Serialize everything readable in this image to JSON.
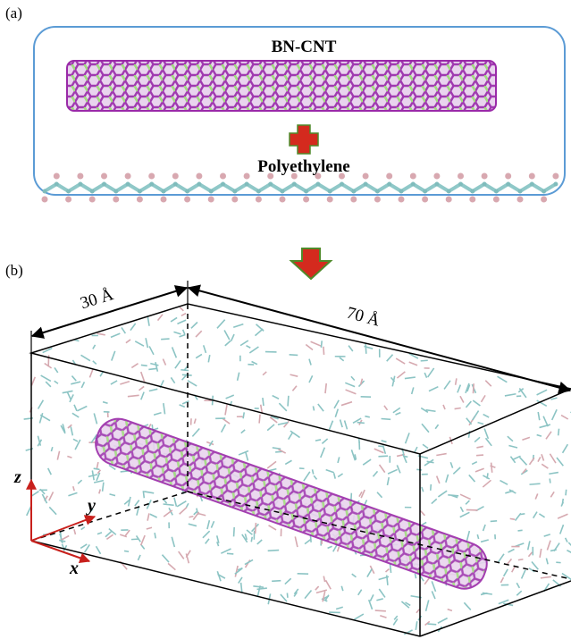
{
  "panel_a": {
    "label": "(a)",
    "nanotube_label": "BN-CNT",
    "polymer_label": "Polyethylene"
  },
  "panel_b": {
    "label": "(b)",
    "width_label": "30 Å",
    "length_label": "70 Å",
    "axes": {
      "z": "z",
      "y": "y",
      "x": "x"
    }
  }
}
